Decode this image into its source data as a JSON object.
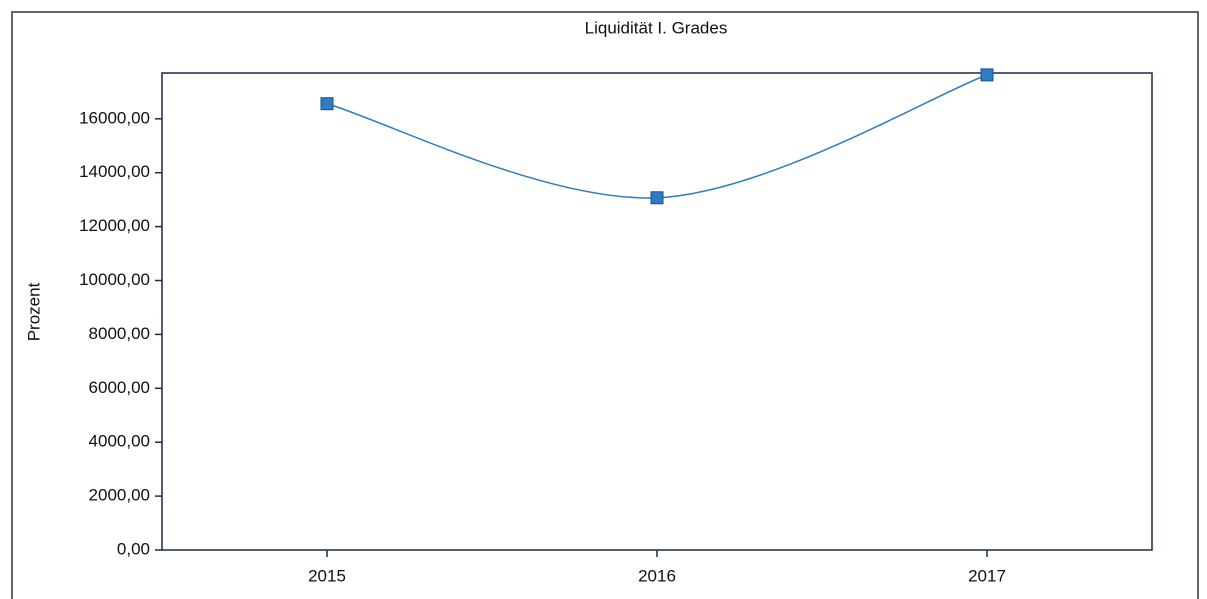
{
  "chart_data": {
    "type": "line",
    "title": "Liquidität I. Grades",
    "y_label": "Prozent",
    "categories": [
      "2015",
      "2016",
      "2017"
    ],
    "series": [
      {
        "name": "Liquidität I. Grades",
        "color": "#2e7cc4",
        "values": [
          16560,
          13070,
          17630
        ]
      }
    ],
    "ylim": [
      0,
      17700
    ],
    "yticks": [
      {
        "value": 0,
        "label": "0,00"
      },
      {
        "value": 2000,
        "label": "2000,00"
      },
      {
        "value": 4000,
        "label": "4000,00"
      },
      {
        "value": 6000,
        "label": "6000,00"
      },
      {
        "value": 8000,
        "label": "8000,00"
      },
      {
        "value": 10000,
        "label": "10000,00"
      },
      {
        "value": 12000,
        "label": "12000,00"
      },
      {
        "value": 14000,
        "label": "14000,00"
      },
      {
        "value": 16000,
        "label": "16000,00"
      }
    ],
    "smooth": true
  }
}
